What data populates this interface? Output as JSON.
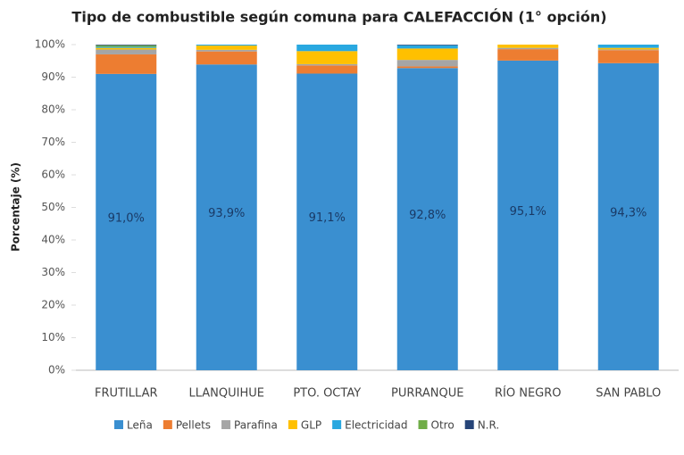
{
  "chart_data": {
    "type": "stacked_bar",
    "title": "Tipo de combustible según comuna para CALEFACCIÓN (1° opción)",
    "y_label": "Porcentaje (%)",
    "categories": [
      "FRUTILLAR",
      "LLANQUIHUE",
      "PTO. OCTAY",
      "PURRANQUE",
      "RÍO NEGRO",
      "SAN PABLO"
    ],
    "series": [
      {
        "name": "Leña",
        "color": "#3a8fd0",
        "values": [
          91.0,
          93.9,
          91.1,
          92.8,
          95.1,
          94.3
        ],
        "value_labels": [
          "91,0%",
          "93,9%",
          "91,1%",
          "92,8%",
          "95,1%",
          "94,3%"
        ]
      },
      {
        "name": "Pellets",
        "color": "#ed7d31",
        "values": [
          6.0,
          4.0,
          2.5,
          0.5,
          3.5,
          4.0
        ]
      },
      {
        "name": "Parafina",
        "color": "#a5a5a5",
        "values": [
          1.5,
          0.5,
          0.4,
          2.0,
          0.4,
          0.2
        ]
      },
      {
        "name": "GLP",
        "color": "#ffc000",
        "values": [
          0.5,
          1.3,
          4.0,
          3.5,
          1.0,
          0.5
        ]
      },
      {
        "name": "Electricidad",
        "color": "#29a8e0",
        "values": [
          0.3,
          0.3,
          2.0,
          1.0,
          0,
          1.0
        ]
      },
      {
        "name": "Otro",
        "color": "#70ad47",
        "values": [
          0.5,
          0,
          0,
          0,
          0,
          0
        ]
      },
      {
        "name": "N.R.",
        "color": "#264478",
        "values": [
          0.2,
          0,
          0,
          0.2,
          0,
          0
        ]
      }
    ],
    "ylim": [
      0,
      100
    ],
    "yticks": [
      {
        "value": 0,
        "label": "0%"
      },
      {
        "value": 10,
        "label": "10%"
      },
      {
        "value": 20,
        "label": "20%"
      },
      {
        "value": 30,
        "label": "30%"
      },
      {
        "value": 40,
        "label": "40%"
      },
      {
        "value": 50,
        "label": "50%"
      },
      {
        "value": 60,
        "label": "60%"
      },
      {
        "value": 70,
        "label": "70%"
      },
      {
        "value": 80,
        "label": "80%"
      },
      {
        "value": 90,
        "label": "90%"
      },
      {
        "value": 100,
        "label": "100%"
      }
    ],
    "legend": "bottom"
  }
}
